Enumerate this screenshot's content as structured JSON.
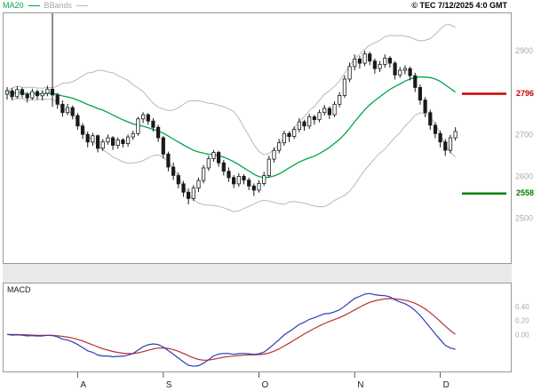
{
  "header": {
    "ma20_label": "MA20",
    "bbands_label": "BBands",
    "copyright": "© TEC 7/12/2025 4:0 GMT"
  },
  "chart_data": {
    "type": "candlestick",
    "title": "",
    "xlabel": "",
    "ylabel": "",
    "price_ylim": [
      2390,
      2990
    ],
    "price_axis_ticks": [
      2900,
      2700,
      2600,
      2500
    ],
    "overlays": [
      "MA20",
      "BBands"
    ],
    "levels": [
      {
        "label": "2796",
        "value": 2796,
        "color": "#cc0000"
      },
      {
        "label": "2558",
        "value": 2558,
        "color": "#008000"
      }
    ],
    "month_ticks": [
      {
        "label": "A",
        "index": 14
      },
      {
        "label": "S",
        "index": 31
      },
      {
        "label": "O",
        "index": 50
      },
      {
        "label": "N",
        "index": 69
      },
      {
        "label": "D",
        "index": 86
      }
    ],
    "ohlc": [
      [
        2795,
        2812,
        2782,
        2803
      ],
      [
        2803,
        2810,
        2780,
        2789
      ],
      [
        2789,
        2814,
        2784,
        2806
      ],
      [
        2806,
        2811,
        2786,
        2794
      ],
      [
        2794,
        2800,
        2775,
        2786
      ],
      [
        2786,
        2808,
        2781,
        2801
      ],
      [
        2801,
        2806,
        2782,
        2791
      ],
      [
        2791,
        2805,
        2780,
        2797
      ],
      [
        2797,
        2815,
        2790,
        2807
      ],
      [
        2807,
        2988,
        2765,
        2793
      ],
      [
        2793,
        2798,
        2760,
        2771
      ],
      [
        2771,
        2780,
        2741,
        2751
      ],
      [
        2751,
        2772,
        2745,
        2763
      ],
      [
        2763,
        2768,
        2735,
        2744
      ],
      [
        2744,
        2750,
        2710,
        2719
      ],
      [
        2719,
        2726,
        2688,
        2699
      ],
      [
        2699,
        2706,
        2668,
        2681
      ],
      [
        2681,
        2703,
        2672,
        2696
      ],
      [
        2696,
        2699,
        2656,
        2666
      ],
      [
        2666,
        2688,
        2660,
        2681
      ],
      [
        2681,
        2699,
        2674,
        2691
      ],
      [
        2691,
        2695,
        2662,
        2673
      ],
      [
        2673,
        2692,
        2665,
        2686
      ],
      [
        2686,
        2690,
        2668,
        2677
      ],
      [
        2677,
        2699,
        2670,
        2693
      ],
      [
        2693,
        2708,
        2686,
        2701
      ],
      [
        2701,
        2741,
        2696,
        2736
      ],
      [
        2736,
        2752,
        2726,
        2746
      ],
      [
        2746,
        2750,
        2722,
        2731
      ],
      [
        2731,
        2738,
        2706,
        2716
      ],
      [
        2716,
        2722,
        2681,
        2691
      ],
      [
        2691,
        2695,
        2641,
        2652
      ],
      [
        2652,
        2658,
        2611,
        2621
      ],
      [
        2621,
        2632,
        2590,
        2601
      ],
      [
        2601,
        2608,
        2570,
        2581
      ],
      [
        2581,
        2588,
        2550,
        2561
      ],
      [
        2561,
        2570,
        2532,
        2546
      ],
      [
        2546,
        2578,
        2540,
        2571
      ],
      [
        2571,
        2596,
        2562,
        2589
      ],
      [
        2589,
        2626,
        2582,
        2619
      ],
      [
        2619,
        2648,
        2612,
        2641
      ],
      [
        2641,
        2662,
        2634,
        2656
      ],
      [
        2656,
        2660,
        2622,
        2631
      ],
      [
        2631,
        2638,
        2601,
        2611
      ],
      [
        2611,
        2620,
        2586,
        2596
      ],
      [
        2596,
        2602,
        2571,
        2581
      ],
      [
        2581,
        2606,
        2574,
        2599
      ],
      [
        2599,
        2604,
        2580,
        2590
      ],
      [
        2590,
        2596,
        2566,
        2576
      ],
      [
        2576,
        2582,
        2552,
        2566
      ],
      [
        2566,
        2590,
        2560,
        2582
      ],
      [
        2582,
        2610,
        2576,
        2601
      ],
      [
        2601,
        2648,
        2596,
        2640
      ],
      [
        2640,
        2668,
        2632,
        2661
      ],
      [
        2661,
        2688,
        2654,
        2679
      ],
      [
        2679,
        2708,
        2672,
        2701
      ],
      [
        2701,
        2706,
        2681,
        2694
      ],
      [
        2694,
        2718,
        2688,
        2711
      ],
      [
        2711,
        2738,
        2704,
        2729
      ],
      [
        2729,
        2734,
        2708,
        2719
      ],
      [
        2719,
        2748,
        2712,
        2741
      ],
      [
        2741,
        2746,
        2722,
        2734
      ],
      [
        2734,
        2758,
        2728,
        2751
      ],
      [
        2751,
        2769,
        2744,
        2761
      ],
      [
        2761,
        2766,
        2736,
        2746
      ],
      [
        2746,
        2778,
        2740,
        2771
      ],
      [
        2771,
        2800,
        2764,
        2792
      ],
      [
        2792,
        2840,
        2786,
        2831
      ],
      [
        2831,
        2870,
        2824,
        2861
      ],
      [
        2861,
        2890,
        2852,
        2879
      ],
      [
        2879,
        2886,
        2856,
        2869
      ],
      [
        2869,
        2899,
        2862,
        2891
      ],
      [
        2891,
        2896,
        2864,
        2874
      ],
      [
        2874,
        2880,
        2844,
        2856
      ],
      [
        2856,
        2874,
        2848,
        2866
      ],
      [
        2866,
        2890,
        2858,
        2881
      ],
      [
        2881,
        2886,
        2858,
        2869
      ],
      [
        2869,
        2874,
        2830,
        2841
      ],
      [
        2841,
        2860,
        2834,
        2852
      ],
      [
        2852,
        2864,
        2842,
        2856
      ],
      [
        2856,
        2861,
        2828,
        2839
      ],
      [
        2839,
        2846,
        2800,
        2811
      ],
      [
        2811,
        2818,
        2770,
        2781
      ],
      [
        2781,
        2788,
        2740,
        2751
      ],
      [
        2751,
        2758,
        2710,
        2721
      ],
      [
        2721,
        2728,
        2690,
        2701
      ],
      [
        2701,
        2708,
        2668,
        2681
      ],
      [
        2681,
        2688,
        2648,
        2661
      ],
      [
        2661,
        2698,
        2654,
        2691
      ],
      [
        2691,
        2716,
        2684,
        2706
      ]
    ],
    "macd": {
      "label": "MACD",
      "axis_ticks": [
        "0.40",
        "0.20",
        "0.00"
      ],
      "axis_values": [
        0.4,
        0.2,
        0.0
      ],
      "ylim": [
        -0.55,
        0.75
      ],
      "colors": {
        "macd": "#2e3db4",
        "signal": "#b43232"
      }
    },
    "colors": {
      "candle": "#1a1a1a",
      "ma20": "#00a44a",
      "bbands": "#b9b9b9",
      "frame": "#999999",
      "axis_text": "#a9a9a9",
      "month_text": "#222222",
      "separator_band": "#e9e9e9"
    }
  }
}
